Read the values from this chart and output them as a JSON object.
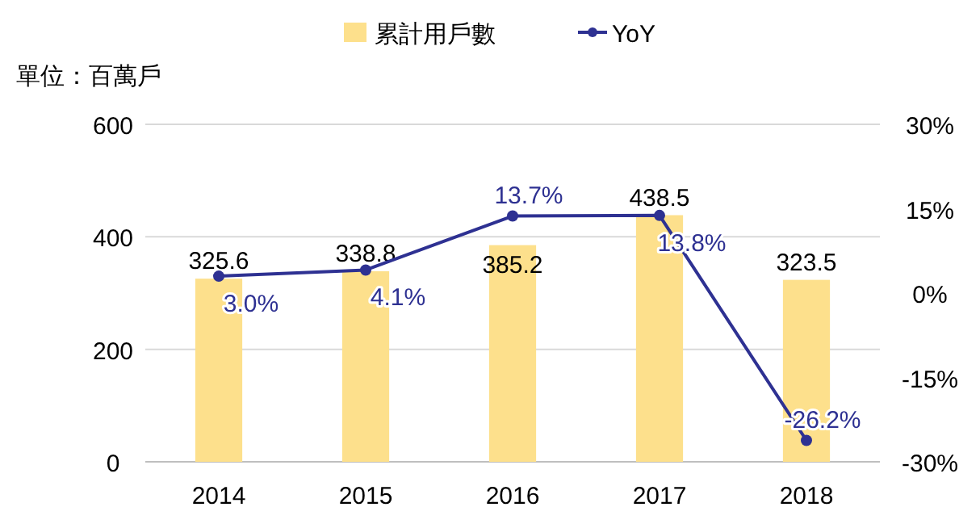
{
  "chart_data": {
    "type": "bar",
    "ylabel": "單位：百萬戶",
    "categories": [
      "2014",
      "2015",
      "2016",
      "2017",
      "2018"
    ],
    "series": [
      {
        "name": "累計用戶數",
        "color": "#fde08c",
        "values": [
          325.6,
          338.8,
          385.2,
          438.5,
          323.5
        ],
        "value_labels": [
          "325.6",
          "338.8",
          "385.2",
          "438.5",
          "323.5"
        ]
      },
      {
        "name": "YoY",
        "type": "line",
        "axis": "y2",
        "color": "#2e3192",
        "values": [
          3.0,
          4.1,
          13.7,
          13.8,
          -26.2
        ],
        "value_labels": [
          "3.0%",
          "4.1%",
          "13.7%",
          "13.8%",
          "-26.2%"
        ]
      }
    ],
    "ylim": [
      0,
      600
    ],
    "yticks": [
      0,
      200,
      400,
      600
    ],
    "y2lim": [
      -30,
      30
    ],
    "y2ticks": [
      {
        "value": -30,
        "label": "-30%"
      },
      {
        "value": -15,
        "label": "-15%"
      },
      {
        "value": 0,
        "label": "0%"
      },
      {
        "value": 15,
        "label": "15%"
      },
      {
        "value": 30,
        "label": "30%"
      }
    ],
    "grid": "y",
    "legend": "top",
    "marker": "circle",
    "line_style": "solid"
  }
}
